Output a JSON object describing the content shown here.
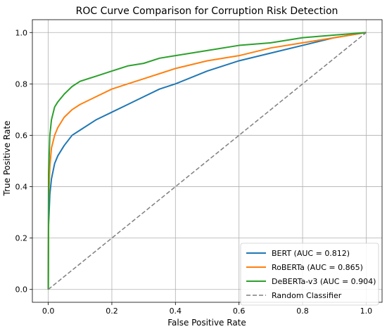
{
  "chart_data": {
    "type": "line",
    "title": "ROC Curve Comparison for Corruption Risk Detection",
    "xlabel": "False Positive Rate",
    "ylabel": "True Positive Rate",
    "xlim": [
      -0.05,
      1.05
    ],
    "ylim": [
      -0.05,
      1.05
    ],
    "xticks": [
      "0.0",
      "0.2",
      "0.4",
      "0.6",
      "0.8",
      "1.0"
    ],
    "yticks": [
      "0.0",
      "0.2",
      "0.4",
      "0.6",
      "0.8",
      "1.0"
    ],
    "grid": true,
    "legend_position": "lower-right",
    "series": [
      {
        "name": "BERT (AUC = 0.812)",
        "color": "#1f77b4",
        "style": "solid",
        "x": [
          0,
          0.001,
          0.005,
          0.01,
          0.02,
          0.03,
          0.05,
          0.075,
          0.1,
          0.15,
          0.2,
          0.25,
          0.3,
          0.35,
          0.4,
          0.5,
          0.6,
          0.7,
          0.8,
          0.9,
          1.0
        ],
        "y": [
          0,
          0.25,
          0.37,
          0.43,
          0.49,
          0.52,
          0.56,
          0.6,
          0.62,
          0.66,
          0.69,
          0.72,
          0.75,
          0.78,
          0.8,
          0.85,
          0.89,
          0.92,
          0.95,
          0.98,
          1.0
        ]
      },
      {
        "name": "RoBERTa (AUC = 0.865)",
        "color": "#ff7f0e",
        "style": "solid",
        "x": [
          0,
          0.001,
          0.005,
          0.01,
          0.02,
          0.03,
          0.05,
          0.075,
          0.1,
          0.15,
          0.2,
          0.25,
          0.3,
          0.35,
          0.4,
          0.5,
          0.6,
          0.7,
          0.8,
          0.9,
          1.0
        ],
        "y": [
          0,
          0.35,
          0.48,
          0.55,
          0.6,
          0.63,
          0.67,
          0.7,
          0.72,
          0.75,
          0.78,
          0.8,
          0.82,
          0.84,
          0.86,
          0.89,
          0.91,
          0.94,
          0.96,
          0.98,
          1.0
        ]
      },
      {
        "name": "DeBERTa-v3 (AUC = 0.904)",
        "color": "#2ca02c",
        "style": "solid",
        "x": [
          0,
          0.001,
          0.005,
          0.01,
          0.02,
          0.03,
          0.05,
          0.075,
          0.1,
          0.15,
          0.2,
          0.25,
          0.3,
          0.35,
          0.4,
          0.5,
          0.6,
          0.7,
          0.8,
          0.9,
          1.0
        ],
        "y": [
          0,
          0.45,
          0.6,
          0.66,
          0.71,
          0.73,
          0.76,
          0.79,
          0.81,
          0.83,
          0.85,
          0.87,
          0.88,
          0.9,
          0.91,
          0.93,
          0.95,
          0.96,
          0.98,
          0.99,
          1.0
        ]
      },
      {
        "name": "Random Classifier",
        "color": "#7f7f7f",
        "style": "dashed",
        "x": [
          0,
          1
        ],
        "y": [
          0,
          1
        ]
      }
    ]
  }
}
